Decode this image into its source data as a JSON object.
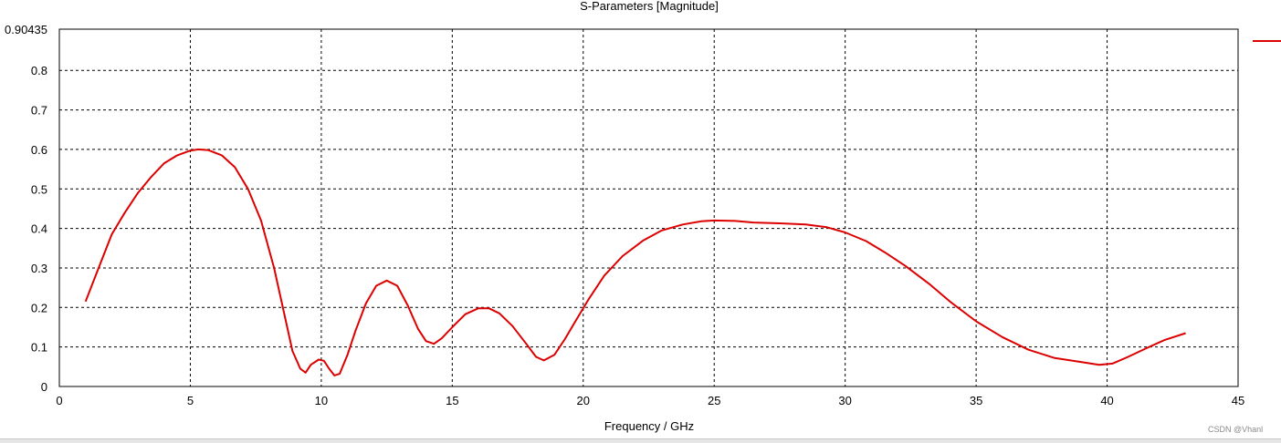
{
  "chart_data": {
    "type": "line",
    "title": "S-Parameters [Magnitude]",
    "xlabel": "Frequency / GHz",
    "ylabel": "",
    "xlim": [
      0,
      45
    ],
    "ylim": [
      0,
      0.90435
    ],
    "x_ticks": [
      0,
      5,
      10,
      15,
      20,
      25,
      30,
      35,
      40,
      45
    ],
    "y_ticks": [
      0,
      0.1,
      0.2,
      0.3,
      0.4,
      0.5,
      0.6,
      0.7,
      0.8,
      0.90435
    ],
    "y_tick_labels": [
      "0",
      "0.1",
      "0.2",
      "0.3",
      "0.4",
      "0.5",
      "0.6",
      "0.7",
      "0.8",
      "0.90435"
    ],
    "grid": true,
    "legend": "top-right",
    "series": [
      {
        "color": "#dd0000",
        "points": [
          [
            1.0,
            0.215
          ],
          [
            1.5,
            0.3
          ],
          [
            2.0,
            0.385
          ],
          [
            2.5,
            0.44
          ],
          [
            3.0,
            0.49
          ],
          [
            3.5,
            0.53
          ],
          [
            4.0,
            0.565
          ],
          [
            4.5,
            0.585
          ],
          [
            5.0,
            0.597
          ],
          [
            5.3,
            0.6
          ],
          [
            5.7,
            0.598
          ],
          [
            6.2,
            0.585
          ],
          [
            6.7,
            0.555
          ],
          [
            7.2,
            0.5
          ],
          [
            7.7,
            0.42
          ],
          [
            8.2,
            0.3
          ],
          [
            8.6,
            0.18
          ],
          [
            8.9,
            0.09
          ],
          [
            9.2,
            0.045
          ],
          [
            9.4,
            0.035
          ],
          [
            9.6,
            0.055
          ],
          [
            9.9,
            0.068
          ],
          [
            10.1,
            0.065
          ],
          [
            10.3,
            0.045
          ],
          [
            10.5,
            0.028
          ],
          [
            10.7,
            0.032
          ],
          [
            11.0,
            0.08
          ],
          [
            11.3,
            0.14
          ],
          [
            11.7,
            0.21
          ],
          [
            12.1,
            0.255
          ],
          [
            12.5,
            0.268
          ],
          [
            12.9,
            0.255
          ],
          [
            13.3,
            0.205
          ],
          [
            13.7,
            0.145
          ],
          [
            14.0,
            0.115
          ],
          [
            14.3,
            0.108
          ],
          [
            14.6,
            0.122
          ],
          [
            15.0,
            0.15
          ],
          [
            15.5,
            0.183
          ],
          [
            16.0,
            0.198
          ],
          [
            16.4,
            0.198
          ],
          [
            16.8,
            0.185
          ],
          [
            17.3,
            0.153
          ],
          [
            17.8,
            0.11
          ],
          [
            18.2,
            0.075
          ],
          [
            18.5,
            0.066
          ],
          [
            18.9,
            0.08
          ],
          [
            19.3,
            0.12
          ],
          [
            19.7,
            0.165
          ],
          [
            20.2,
            0.22
          ],
          [
            20.8,
            0.28
          ],
          [
            21.5,
            0.33
          ],
          [
            22.3,
            0.37
          ],
          [
            23.0,
            0.395
          ],
          [
            23.8,
            0.41
          ],
          [
            24.5,
            0.418
          ],
          [
            25.0,
            0.42
          ],
          [
            25.8,
            0.419
          ],
          [
            26.5,
            0.415
          ],
          [
            27.5,
            0.413
          ],
          [
            28.5,
            0.41
          ],
          [
            29.3,
            0.403
          ],
          [
            30.0,
            0.39
          ],
          [
            30.8,
            0.368
          ],
          [
            31.5,
            0.34
          ],
          [
            32.3,
            0.305
          ],
          [
            33.2,
            0.26
          ],
          [
            34.0,
            0.215
          ],
          [
            35.0,
            0.165
          ],
          [
            36.0,
            0.125
          ],
          [
            37.0,
            0.093
          ],
          [
            38.0,
            0.072
          ],
          [
            39.0,
            0.062
          ],
          [
            39.7,
            0.055
          ],
          [
            40.2,
            0.058
          ],
          [
            40.8,
            0.075
          ],
          [
            41.5,
            0.097
          ],
          [
            42.2,
            0.118
          ],
          [
            43.0,
            0.135
          ]
        ]
      }
    ]
  },
  "footer": {
    "watermark": "CSDN @Vhanl"
  }
}
